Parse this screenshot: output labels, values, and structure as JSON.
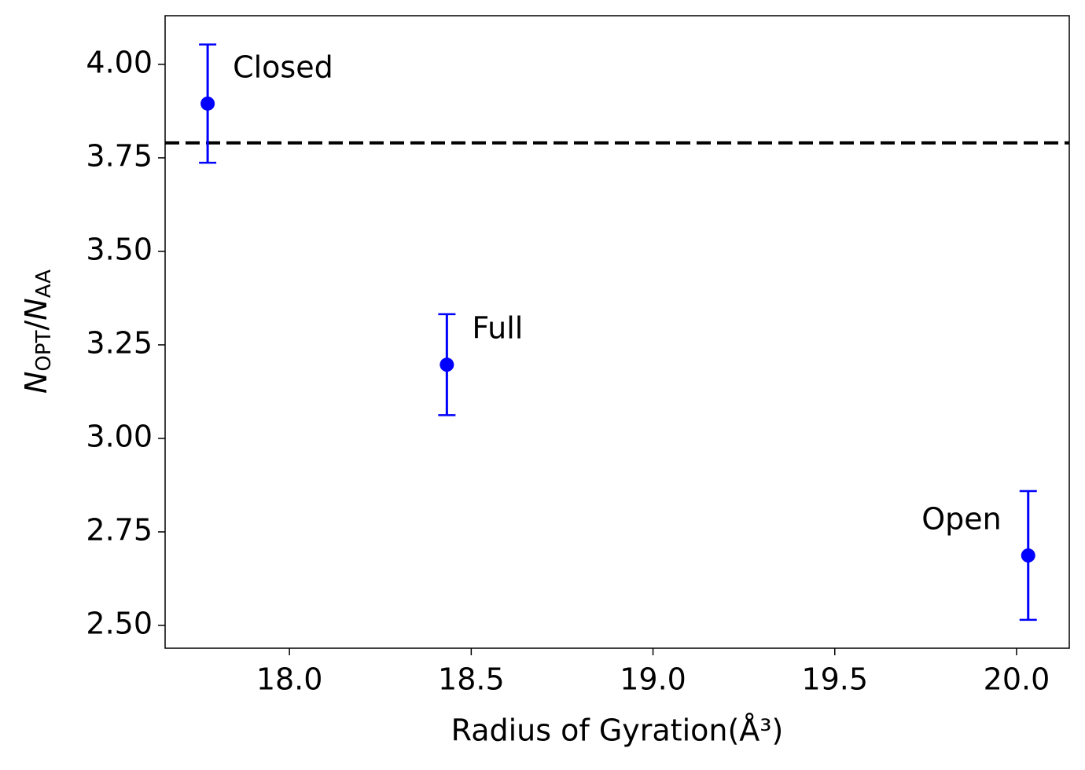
{
  "chart_data": {
    "type": "scatter",
    "xlabel": "Radius of Gyration(Å³)",
    "ylabel_parts": [
      "N",
      "OPT",
      "/",
      "N",
      "AA"
    ],
    "x": [
      17.775,
      18.433,
      20.032
    ],
    "series": [
      {
        "color": "#0000ff",
        "values": [
          3.895,
          3.197,
          2.687
        ],
        "errors": [
          0.158,
          0.135,
          0.172
        ],
        "labels": [
          "Closed",
          "Full",
          "Open"
        ]
      }
    ],
    "hline": {
      "value": 3.79,
      "color": "#000000",
      "dashed": true
    },
    "xlim": [
      17.658,
      20.145
    ],
    "xticks": [
      {
        "value": 18.0,
        "label": "18.0"
      },
      {
        "value": 18.5,
        "label": "18.5"
      },
      {
        "value": 19.0,
        "label": "19.0"
      },
      {
        "value": 19.5,
        "label": "19.5"
      },
      {
        "value": 20.0,
        "label": "20.0"
      }
    ],
    "ylim": [
      2.439,
      4.13
    ],
    "yticks": [
      {
        "value": 2.5,
        "label": "2.50"
      },
      {
        "value": 2.75,
        "label": "2.75"
      },
      {
        "value": 3.0,
        "label": "3.00"
      },
      {
        "value": 3.25,
        "label": "3.25"
      },
      {
        "value": 3.5,
        "label": "3.50"
      },
      {
        "value": 3.75,
        "label": "3.75"
      },
      {
        "value": 4.0,
        "label": "4.00"
      }
    ],
    "grid": false
  }
}
